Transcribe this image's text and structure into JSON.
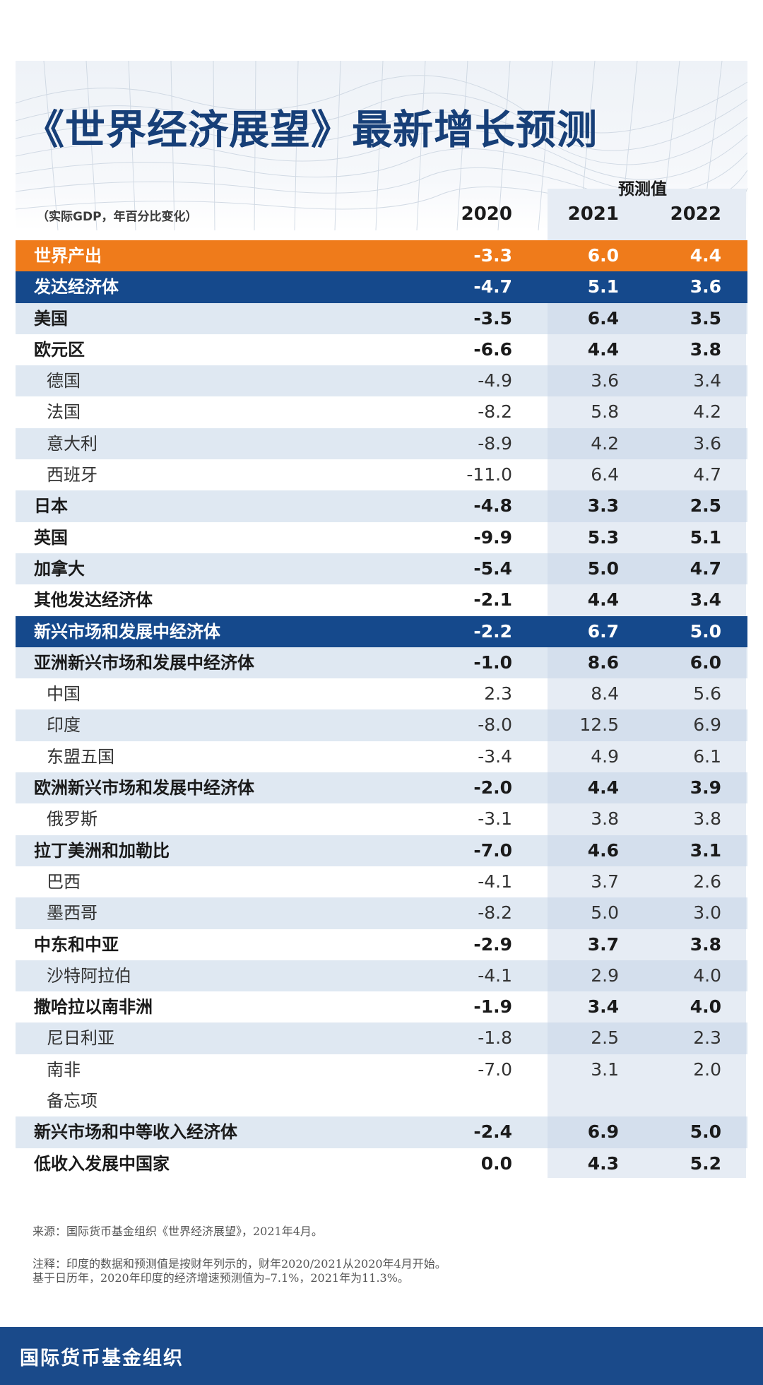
{
  "title": "《世界经济展望》最新增长预测",
  "forecast_label": "预测值",
  "unit_note": "（实际GDP，年百分比变化）",
  "years": [
    "2020",
    "2021",
    "2022"
  ],
  "rows": [
    {
      "label": "世界产出",
      "v2020": "-3.3",
      "v2021": "6.0",
      "v2022": "4.4",
      "style": "world"
    },
    {
      "label": "发达经济体",
      "v2020": "-4.7",
      "v2021": "5.1",
      "v2022": "3.6",
      "style": "group"
    },
    {
      "label": "美国",
      "v2020": "-3.5",
      "v2021": "6.4",
      "v2022": "3.5",
      "style": "shade bold"
    },
    {
      "label": "欧元区",
      "v2020": "-6.6",
      "v2021": "4.4",
      "v2022": "3.8",
      "style": "bold"
    },
    {
      "label": "德国",
      "v2020": "-4.9",
      "v2021": "3.6",
      "v2022": "3.4",
      "style": "shade sub"
    },
    {
      "label": "法国",
      "v2020": "-8.2",
      "v2021": "5.8",
      "v2022": "4.2",
      "style": "sub"
    },
    {
      "label": "意大利",
      "v2020": "-8.9",
      "v2021": "4.2",
      "v2022": "3.6",
      "style": "shade sub"
    },
    {
      "label": "西班牙",
      "v2020": "-11.0",
      "v2021": "6.4",
      "v2022": "4.7",
      "style": "sub"
    },
    {
      "label": "日本",
      "v2020": "-4.8",
      "v2021": "3.3",
      "v2022": "2.5",
      "style": "shade bold"
    },
    {
      "label": "英国",
      "v2020": "-9.9",
      "v2021": "5.3",
      "v2022": "5.1",
      "style": "bold"
    },
    {
      "label": "加拿大",
      "v2020": "-5.4",
      "v2021": "5.0",
      "v2022": "4.7",
      "style": "shade bold"
    },
    {
      "label": "其他发达经济体",
      "v2020": "-2.1",
      "v2021": "4.4",
      "v2022": "3.4",
      "style": "bold"
    },
    {
      "label": "新兴市场和发展中经济体",
      "v2020": "-2.2",
      "v2021": "6.7",
      "v2022": "5.0",
      "style": "group"
    },
    {
      "label": "亚洲新兴市场和发展中经济体",
      "v2020": "-1.0",
      "v2021": "8.6",
      "v2022": "6.0",
      "style": "shade bold"
    },
    {
      "label": "中国",
      "v2020": "2.3",
      "v2021": "8.4",
      "v2022": "5.6",
      "style": "sub"
    },
    {
      "label": "印度",
      "v2020": "-8.0",
      "v2021": "12.5",
      "v2022": "6.9",
      "style": "shade sub"
    },
    {
      "label": "东盟五国",
      "v2020": "-3.4",
      "v2021": "4.9",
      "v2022": "6.1",
      "style": "sub"
    },
    {
      "label": "欧洲新兴市场和发展中经济体",
      "v2020": "-2.0",
      "v2021": "4.4",
      "v2022": "3.9",
      "style": "shade bold"
    },
    {
      "label": "俄罗斯",
      "v2020": "-3.1",
      "v2021": "3.8",
      "v2022": "3.8",
      "style": "sub"
    },
    {
      "label": "拉丁美洲和加勒比",
      "v2020": "-7.0",
      "v2021": "4.6",
      "v2022": "3.1",
      "style": "shade bold"
    },
    {
      "label": "巴西",
      "v2020": "-4.1",
      "v2021": "3.7",
      "v2022": "2.6",
      "style": "sub"
    },
    {
      "label": "墨西哥",
      "v2020": "-8.2",
      "v2021": "5.0",
      "v2022": "3.0",
      "style": "shade sub"
    },
    {
      "label": "中东和中亚",
      "v2020": "-2.9",
      "v2021": "3.7",
      "v2022": "3.8",
      "style": "bold"
    },
    {
      "label": "沙特阿拉伯",
      "v2020": "-4.1",
      "v2021": "2.9",
      "v2022": "4.0",
      "style": "shade sub"
    },
    {
      "label": "撒哈拉以南非洲",
      "v2020": "-1.9",
      "v2021": "3.4",
      "v2022": "4.0",
      "style": "bold"
    },
    {
      "label": "尼日利亚",
      "v2020": "-1.8",
      "v2021": "2.5",
      "v2022": "2.3",
      "style": "shade sub"
    },
    {
      "label": "南非",
      "v2020": "-7.0",
      "v2021": "3.1",
      "v2022": "2.0",
      "style": "sub"
    },
    {
      "label": "备忘项",
      "v2020": "",
      "v2021": "",
      "v2022": "",
      "style": "sub"
    },
    {
      "label": "新兴市场和中等收入经济体",
      "v2020": "-2.4",
      "v2021": "6.9",
      "v2022": "5.0",
      "style": "shade bold"
    },
    {
      "label": "低收入发展中国家",
      "v2020": "0.0",
      "v2021": "4.3",
      "v2022": "5.2",
      "style": "bold"
    }
  ],
  "source": "来源：国际货币基金组织《世界经济展望》，2021年4月。",
  "note_line1": "注释：印度的数据和预测值是按财年列示的，财年2020/2021从2020年4月开始。",
  "note_line2": "基于日历年，2020年印度的经济增速预测值为–7.1%，2021年为11.3%。",
  "footer": "国际货币基金组织",
  "colors": {
    "title": "#173f78",
    "world_row": "#ef7b1b",
    "group_row": "#15498c",
    "footer": "#1a4a8a",
    "shade": "#c5d5e8"
  }
}
